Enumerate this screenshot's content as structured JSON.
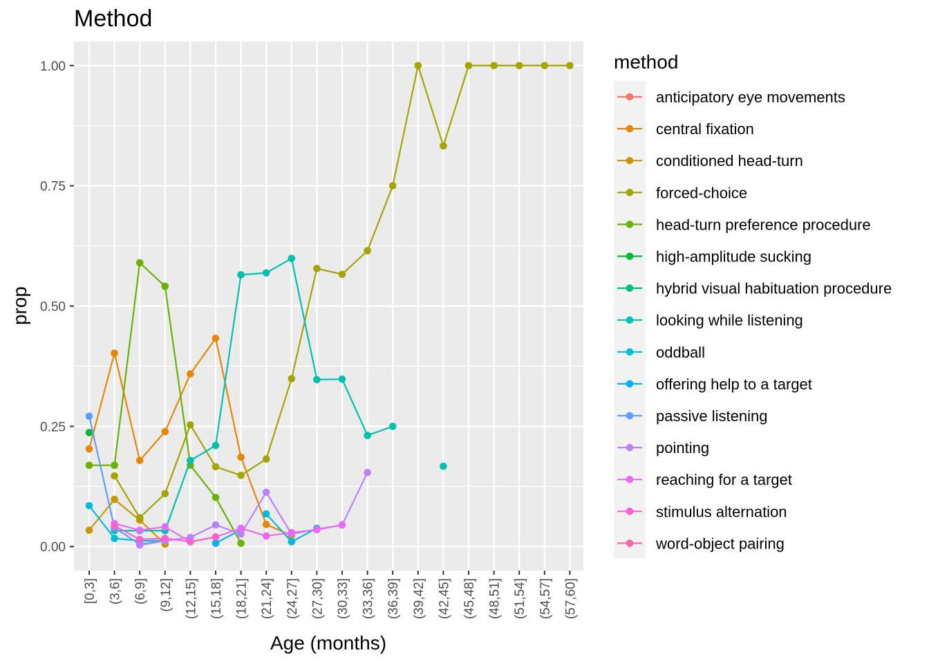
{
  "chart_data": {
    "type": "line",
    "title": "Method",
    "xlabel": "Age (months)",
    "ylabel": "prop",
    "categories": [
      "[0,3]",
      "(3,6]",
      "(6,9]",
      "(9,12]",
      "(12,15]",
      "(15,18]",
      "(18,21]",
      "(21,24]",
      "(24,27]",
      "(27,30]",
      "(30,33]",
      "(33,36]",
      "(36,39]",
      "(39,42]",
      "(42,45]",
      "(45,48]",
      "(48,51]",
      "(51,54]",
      "(54,57]",
      "(57,60]"
    ],
    "ylim": [
      -0.05,
      1.05
    ],
    "yticks": [
      0,
      0.25,
      0.5,
      0.75,
      1.0
    ],
    "ytick_labels": [
      "0.00",
      "0.25",
      "0.50",
      "0.75",
      "1.00"
    ],
    "grid": true,
    "legend_title": "method",
    "legend_position": "right",
    "series": [
      {
        "name": "anticipatory eye movements",
        "color": "#F8766D",
        "values": [
          null,
          null,
          null,
          null,
          null,
          null,
          null,
          null,
          null,
          null,
          null,
          null,
          null,
          null,
          null,
          null,
          null,
          null,
          null,
          null
        ]
      },
      {
        "name": "central fixation",
        "color": "#E58700",
        "values": [
          0.203,
          0.402,
          0.179,
          0.239,
          0.359,
          0.433,
          0.186,
          0.046,
          0.023,
          null,
          null,
          null,
          null,
          null,
          null,
          null,
          null,
          null,
          null,
          null
        ]
      },
      {
        "name": "conditioned head-turn",
        "color": "#C99800",
        "values": [
          0.034,
          0.098,
          0.055,
          0.005,
          null,
          null,
          null,
          null,
          null,
          null,
          null,
          null,
          null,
          null,
          null,
          null,
          null,
          null,
          null,
          null
        ]
      },
      {
        "name": "forced-choice",
        "color": "#A3A500",
        "values": [
          null,
          0.147,
          0.06,
          0.11,
          0.253,
          0.166,
          0.148,
          0.182,
          0.349,
          0.578,
          0.566,
          0.615,
          0.75,
          1.0,
          0.833,
          1.0,
          1.0,
          1.0,
          1.0,
          1.0
        ]
      },
      {
        "name": "head-turn preference procedure",
        "color": "#6BB100",
        "values": [
          0.169,
          0.169,
          0.59,
          0.541,
          0.169,
          0.102,
          0.007,
          null,
          null,
          null,
          null,
          null,
          null,
          null,
          null,
          null,
          null,
          null,
          null,
          null
        ]
      },
      {
        "name": "high-amplitude sucking",
        "color": "#00BA38",
        "values": [
          0.237,
          null,
          null,
          null,
          null,
          null,
          null,
          null,
          null,
          null,
          null,
          null,
          null,
          null,
          null,
          null,
          null,
          null,
          null,
          null
        ]
      },
      {
        "name": "hybrid visual habituation procedure",
        "color": "#00BF7D",
        "values": [
          null,
          null,
          null,
          null,
          null,
          null,
          null,
          null,
          null,
          null,
          null,
          null,
          null,
          null,
          null,
          null,
          null,
          null,
          null,
          null
        ]
      },
      {
        "name": "looking while listening",
        "color": "#00C0AF",
        "values": [
          null,
          0.033,
          0.033,
          0.033,
          0.179,
          0.21,
          0.565,
          0.569,
          0.599,
          0.347,
          0.348,
          0.231,
          0.25,
          null,
          0.167,
          null,
          null,
          null,
          null,
          null
        ]
      },
      {
        "name": "oddball",
        "color": "#00BCD8",
        "values": [
          0.085,
          0.017,
          0.012,
          0.012,
          null,
          null,
          null,
          0.068,
          0.01,
          0.038,
          null,
          null,
          null,
          null,
          null,
          null,
          null,
          null,
          null,
          null
        ]
      },
      {
        "name": "offering help to a target",
        "color": "#00B0F6",
        "values": [
          null,
          null,
          null,
          null,
          null,
          0.007,
          0.035,
          null,
          null,
          null,
          null,
          null,
          null,
          null,
          null,
          null,
          null,
          null,
          null,
          null
        ]
      },
      {
        "name": "passive listening",
        "color": "#619CFF",
        "values": [
          0.271,
          0.039,
          0.005,
          0.012,
          null,
          null,
          null,
          null,
          null,
          null,
          null,
          null,
          null,
          null,
          null,
          null,
          null,
          null,
          null,
          null
        ]
      },
      {
        "name": "pointing",
        "color": "#B983FF",
        "values": [
          null,
          null,
          0.003,
          0.012,
          0.019,
          0.045,
          0.026,
          0.113,
          0.026,
          0.036,
          0.045,
          0.154,
          null,
          null,
          null,
          null,
          null,
          null,
          null,
          null
        ]
      },
      {
        "name": "reaching for a target",
        "color": "#E76BF3",
        "values": [
          null,
          0.048,
          0.034,
          0.041,
          0.01,
          0.02,
          0.038,
          0.022,
          0.029,
          0.035,
          0.045,
          null,
          null,
          null,
          null,
          null,
          null,
          null,
          null,
          null
        ]
      },
      {
        "name": "stimulus alternation",
        "color": "#FD61D1",
        "values": [
          null,
          0.043,
          0.015,
          0.017,
          0.01,
          0.02,
          null,
          null,
          null,
          null,
          null,
          null,
          null,
          null,
          null,
          null,
          null,
          null,
          null,
          null
        ]
      },
      {
        "name": "word-object pairing",
        "color": "#FF67A4",
        "values": [
          null,
          null,
          null,
          null,
          null,
          null,
          null,
          null,
          null,
          null,
          null,
          null,
          null,
          null,
          null,
          null,
          null,
          null,
          null,
          null
        ]
      }
    ]
  }
}
